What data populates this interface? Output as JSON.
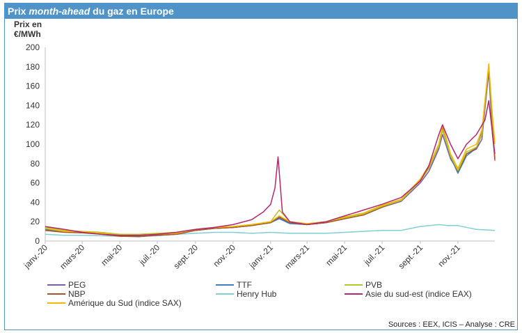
{
  "header": {
    "title_pre": "Prix ",
    "title_em": "month-ahead",
    "title_post": " du gaz en Europe"
  },
  "axis": {
    "ylabel_line1": "Prix en",
    "ylabel_line2": "€/MWh"
  },
  "footer": {
    "source": "Sources : EEX, ICIS – Analyse : CRE"
  },
  "chart_data": {
    "type": "line",
    "title": "Prix month-ahead du gaz en Europe",
    "ylabel": "Prix en €/MWh",
    "xlabel": "",
    "ylim": [
      0,
      200
    ],
    "y_ticks": [
      0,
      20,
      40,
      60,
      80,
      100,
      120,
      140,
      160,
      180,
      200
    ],
    "x_tick_labels": [
      "janv.-20",
      "mars-20",
      "mai-20",
      "juil.-20",
      "sept.-20",
      "nov.-20",
      "janv.-21",
      "mars-21",
      "mai-21",
      "juil.-21",
      "sept.-21",
      "nov.-21"
    ],
    "x_tick_dates": [
      "2020-01-01",
      "2020-03-01",
      "2020-05-01",
      "2020-07-01",
      "2020-09-01",
      "2020-11-01",
      "2021-01-01",
      "2021-03-01",
      "2021-05-01",
      "2021-07-01",
      "2021-09-01",
      "2021-11-01"
    ],
    "xlim": [
      "2020-01-01",
      "2021-12-31"
    ],
    "grid": false,
    "legend_position": "bottom",
    "series": [
      {
        "name": "PEG",
        "color": "#7b5ea7",
        "x": [
          "2020-01-01",
          "2020-02-01",
          "2020-03-01",
          "2020-04-01",
          "2020-05-01",
          "2020-06-01",
          "2020-07-01",
          "2020-08-01",
          "2020-09-01",
          "2020-10-01",
          "2020-11-01",
          "2020-12-01",
          "2021-01-01",
          "2021-01-15",
          "2021-02-01",
          "2021-03-01",
          "2021-04-01",
          "2021-05-01",
          "2021-06-01",
          "2021-07-01",
          "2021-08-01",
          "2021-09-01",
          "2021-09-15",
          "2021-10-01",
          "2021-10-07",
          "2021-10-20",
          "2021-11-01",
          "2021-11-15",
          "2021-12-01",
          "2021-12-10",
          "2021-12-21",
          "2021-12-27",
          "2021-12-31"
        ],
        "values": [
          12,
          10,
          9,
          8,
          6,
          5,
          6,
          7,
          11,
          13,
          14,
          16,
          19,
          24,
          19,
          17,
          19,
          23,
          27,
          35,
          41,
          60,
          72,
          95,
          110,
          85,
          72,
          90,
          95,
          105,
          175,
          110,
          86
        ]
      },
      {
        "name": "TTF",
        "color": "#3d7fc1",
        "x": [
          "2020-01-01",
          "2020-02-01",
          "2020-03-01",
          "2020-04-01",
          "2020-05-01",
          "2020-06-01",
          "2020-07-01",
          "2020-08-01",
          "2020-09-01",
          "2020-10-01",
          "2020-11-01",
          "2020-12-01",
          "2021-01-01",
          "2021-01-15",
          "2021-02-01",
          "2021-03-01",
          "2021-04-01",
          "2021-05-01",
          "2021-06-01",
          "2021-07-01",
          "2021-08-01",
          "2021-09-01",
          "2021-09-15",
          "2021-10-01",
          "2021-10-07",
          "2021-10-20",
          "2021-11-01",
          "2021-11-15",
          "2021-12-01",
          "2021-12-10",
          "2021-12-21",
          "2021-12-27",
          "2021-12-31"
        ],
        "values": [
          12,
          9.5,
          9,
          7.5,
          5.5,
          5,
          6,
          7,
          11,
          13,
          14,
          16,
          19,
          23,
          18,
          17,
          19,
          24,
          28,
          35,
          42,
          62,
          75,
          97,
          115,
          87,
          70,
          88,
          96,
          110,
          180,
          115,
          85
        ]
      },
      {
        "name": "PVB",
        "color": "#b7c52b",
        "x": [
          "2020-01-01",
          "2020-02-01",
          "2020-03-01",
          "2020-04-01",
          "2020-05-01",
          "2020-06-01",
          "2020-07-01",
          "2020-08-01",
          "2020-09-01",
          "2020-10-01",
          "2020-11-01",
          "2020-12-01",
          "2021-01-01",
          "2021-01-15",
          "2021-02-01",
          "2021-03-01",
          "2021-04-01",
          "2021-05-01",
          "2021-06-01",
          "2021-07-01",
          "2021-08-01",
          "2021-09-01",
          "2021-09-15",
          "2021-10-01",
          "2021-10-07",
          "2021-10-20",
          "2021-11-01",
          "2021-11-15",
          "2021-12-01",
          "2021-12-10",
          "2021-12-21",
          "2021-12-27",
          "2021-12-31"
        ],
        "values": [
          14,
          11,
          10,
          9,
          7,
          7,
          8,
          9,
          12,
          14,
          15,
          17,
          20,
          32,
          20,
          18,
          20,
          24,
          28,
          36,
          42,
          62,
          75,
          98,
          115,
          88,
          73,
          92,
          97,
          110,
          182,
          125,
          100
        ]
      },
      {
        "name": "NBP",
        "color": "#a8552a",
        "x": [
          "2020-01-01",
          "2020-02-01",
          "2020-03-01",
          "2020-04-01",
          "2020-05-01",
          "2020-06-01",
          "2020-07-01",
          "2020-08-01",
          "2020-09-01",
          "2020-10-01",
          "2020-11-01",
          "2020-12-01",
          "2021-01-01",
          "2021-01-15",
          "2021-02-01",
          "2021-03-01",
          "2021-04-01",
          "2021-05-01",
          "2021-06-01",
          "2021-07-01",
          "2021-08-01",
          "2021-09-01",
          "2021-09-15",
          "2021-10-01",
          "2021-10-07",
          "2021-10-20",
          "2021-11-01",
          "2021-11-15",
          "2021-12-01",
          "2021-12-10",
          "2021-12-21",
          "2021-12-27",
          "2021-12-31"
        ],
        "values": [
          11,
          9,
          8.5,
          7,
          5,
          4.5,
          6,
          7,
          11,
          13,
          14,
          16,
          19,
          25,
          19,
          17,
          19,
          23,
          27,
          35,
          42,
          63,
          76,
          99,
          118,
          88,
          72,
          90,
          96,
          112,
          180,
          118,
          83
        ]
      },
      {
        "name": "Henry Hub",
        "color": "#7fcfd3",
        "x": [
          "2020-01-01",
          "2020-02-01",
          "2020-03-01",
          "2020-04-01",
          "2020-05-01",
          "2020-06-01",
          "2020-07-01",
          "2020-08-01",
          "2020-09-01",
          "2020-10-01",
          "2020-11-01",
          "2020-12-01",
          "2021-01-01",
          "2021-02-01",
          "2021-03-01",
          "2021-04-01",
          "2021-05-01",
          "2021-06-01",
          "2021-07-01",
          "2021-08-01",
          "2021-09-01",
          "2021-10-01",
          "2021-10-15",
          "2021-11-01",
          "2021-12-01",
          "2021-12-31"
        ],
        "values": [
          7,
          6,
          6,
          5.5,
          5,
          5,
          5.5,
          7,
          8,
          9,
          9,
          8,
          9,
          8,
          8,
          8,
          9,
          10,
          11,
          11,
          15,
          17,
          16,
          16,
          12,
          11
        ]
      },
      {
        "name": "Asie du sud-est (indice EAX)",
        "color": "#b5266e",
        "x": [
          "2020-01-01",
          "2020-02-01",
          "2020-03-01",
          "2020-04-01",
          "2020-05-01",
          "2020-06-01",
          "2020-07-01",
          "2020-08-01",
          "2020-09-01",
          "2020-10-01",
          "2020-11-01",
          "2020-12-01",
          "2020-12-20",
          "2021-01-01",
          "2021-01-08",
          "2021-01-13",
          "2021-01-20",
          "2021-02-01",
          "2021-03-01",
          "2021-04-01",
          "2021-05-01",
          "2021-06-01",
          "2021-07-01",
          "2021-08-01",
          "2021-09-01",
          "2021-09-15",
          "2021-10-01",
          "2021-10-07",
          "2021-10-20",
          "2021-11-01",
          "2021-11-15",
          "2021-12-01",
          "2021-12-15",
          "2021-12-21",
          "2021-12-31"
        ],
        "values": [
          15,
          12,
          9,
          7,
          6,
          6,
          7,
          9,
          12,
          14,
          17,
          22,
          30,
          38,
          55,
          87,
          30,
          20,
          17,
          20,
          26,
          32,
          38,
          45,
          62,
          78,
          110,
          120,
          100,
          85,
          100,
          110,
          125,
          145,
          90
        ]
      },
      {
        "name": "Amérique du Sud (indice SAX)",
        "color": "#f5b800",
        "x": [
          "2020-01-01",
          "2020-02-01",
          "2020-03-01",
          "2020-04-01",
          "2020-05-01",
          "2020-06-01",
          "2020-07-01",
          "2020-08-01",
          "2020-09-01",
          "2020-10-01",
          "2020-11-01",
          "2020-12-01",
          "2021-01-01",
          "2021-01-15",
          "2021-02-01",
          "2021-03-01",
          "2021-04-01",
          "2021-05-01",
          "2021-06-01",
          "2021-07-01",
          "2021-08-01",
          "2021-09-01",
          "2021-09-15",
          "2021-10-01",
          "2021-10-07",
          "2021-10-20",
          "2021-11-01",
          "2021-11-15",
          "2021-12-01",
          "2021-12-10",
          "2021-12-21",
          "2021-12-27",
          "2021-12-31"
        ],
        "values": [
          13,
          10,
          9.5,
          8,
          6,
          6,
          7,
          8,
          12,
          14,
          15,
          17,
          20,
          26,
          20,
          18,
          20,
          25,
          29,
          37,
          43,
          64,
          78,
          100,
          120,
          90,
          75,
          95,
          100,
          115,
          183,
          130,
          102
        ]
      }
    ]
  }
}
